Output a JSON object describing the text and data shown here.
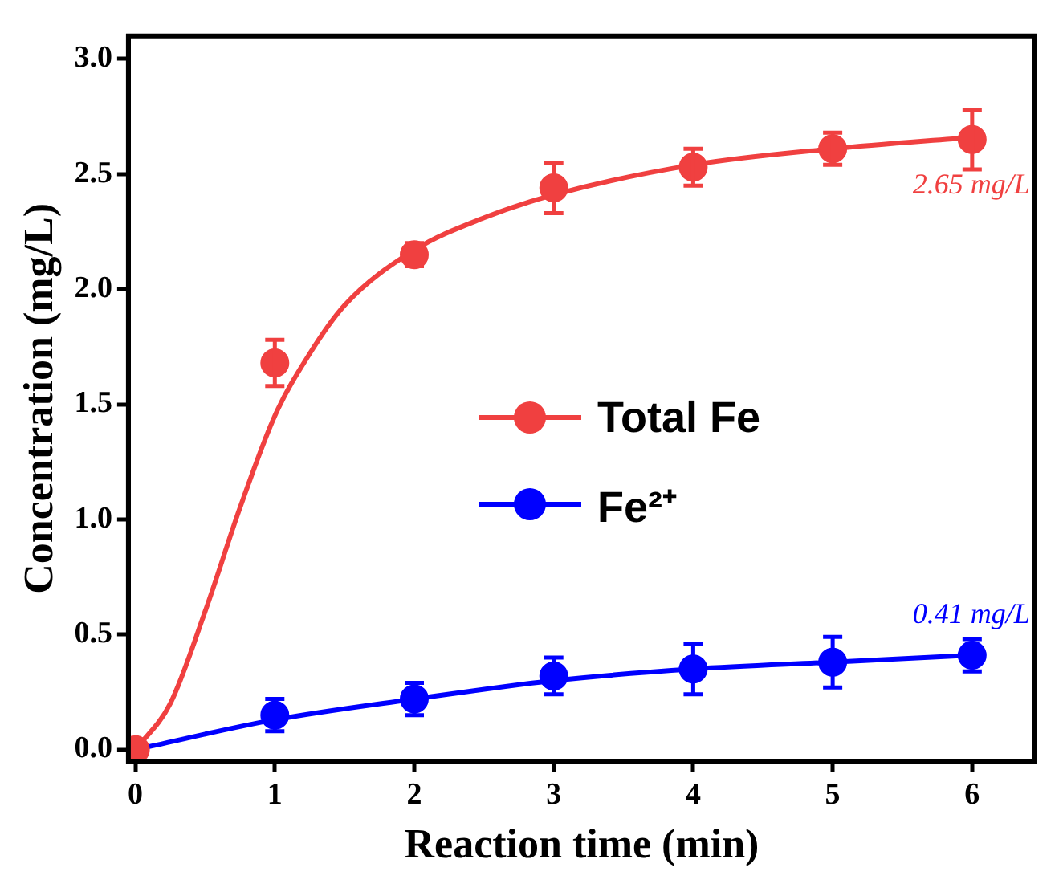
{
  "chart_data": {
    "type": "scatter",
    "xlabel": "Reaction time (min)",
    "ylabel": "Concentration (mg/L)",
    "x": [
      0,
      1,
      2,
      3,
      4,
      5,
      6
    ],
    "xlim": [
      -0.05,
      6.45
    ],
    "xticks": [
      0,
      1,
      2,
      3,
      4,
      5,
      6
    ],
    "ylim": [
      -0.05,
      3.1
    ],
    "yticks": [
      {
        "value": 0,
        "label": "0.0"
      },
      {
        "value": 0.5,
        "label": "0.5"
      },
      {
        "value": 1,
        "label": "1.0"
      },
      {
        "value": 1.5,
        "label": "1.5"
      },
      {
        "value": 2,
        "label": "2.0"
      },
      {
        "value": 2.5,
        "label": "2.5"
      },
      {
        "value": 3,
        "label": "3.0"
      }
    ],
    "grid": false,
    "legend": "center",
    "marker": "circle",
    "series": [
      {
        "name": "Total Fe",
        "type": "scatter",
        "color": "#f04040",
        "values": [
          0,
          1.68,
          2.15,
          2.44,
          2.53,
          2.61,
          2.65
        ],
        "errors": [
          null,
          0.1,
          0.05,
          0.11,
          0.08,
          0.07,
          0.13
        ]
      },
      {
        "name": "Fe²⁺",
        "type": "scatter",
        "color": "#0000ff",
        "values": [
          null,
          0.15,
          0.22,
          0.32,
          0.35,
          0.38,
          0.41
        ],
        "errors": [
          null,
          0.07,
          0.07,
          0.08,
          0.11,
          0.11,
          0.07
        ]
      },
      {
        "type": "line",
        "color": "#f04040",
        "marker": "none",
        "x": [
          0,
          0.25,
          0.5,
          0.75,
          1,
          1.25,
          1.5,
          2,
          2.5,
          3,
          4,
          5,
          6
        ],
        "values": [
          0,
          0.2,
          0.6,
          1.05,
          1.45,
          1.72,
          1.93,
          2.17,
          2.31,
          2.41,
          2.54,
          2.61,
          2.66
        ]
      },
      {
        "type": "line",
        "color": "#0000ff",
        "marker": "none",
        "x": [
          0,
          1,
          2,
          3,
          4,
          5,
          6
        ],
        "values": [
          0,
          0.13,
          0.22,
          0.3,
          0.35,
          0.38,
          0.41
        ]
      }
    ],
    "annotations": [
      {
        "text": "2.65 mg/L",
        "x": 6,
        "y": 2.65
      },
      {
        "text": "0.41 mg/L",
        "x": 6,
        "y": 0.41
      }
    ]
  }
}
